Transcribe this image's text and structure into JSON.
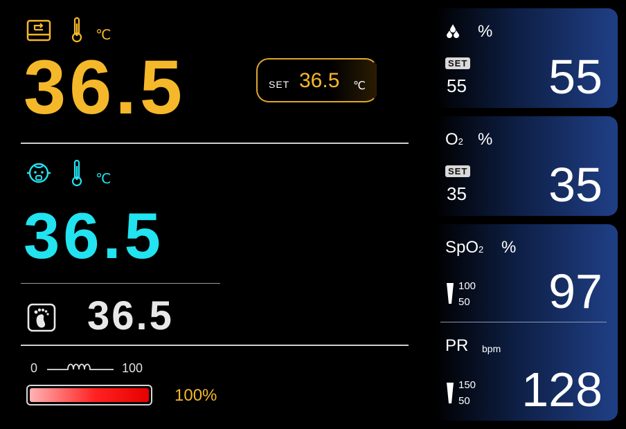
{
  "air_temp": {
    "unit": "℃",
    "value": "36.5",
    "set_label": "SET",
    "set_value": "36.5",
    "set_unit": "℃",
    "icon": "incubator-icon",
    "color": "#f5b82a"
  },
  "skin_temp": {
    "unit": "℃",
    "value": "36.5",
    "icon": "baby-face-icon",
    "color": "#22e3f0"
  },
  "foot_temp": {
    "value": "36.5",
    "icon": "foot-icon"
  },
  "heater": {
    "min": "0",
    "max": "100",
    "percent_label": "100%",
    "level": 1.0,
    "icon": "heater-coil-icon"
  },
  "humidity": {
    "icon": "humidity-drops-icon",
    "unit": "%",
    "set_label": "SET",
    "set_value": "55",
    "value": "55"
  },
  "oxygen": {
    "label": "O",
    "sub": "2",
    "unit": "%",
    "set_label": "SET",
    "set_value": "35",
    "value": "35"
  },
  "spo2": {
    "label": "SpO",
    "sub": "2",
    "unit": "%",
    "alarm_high": "100",
    "alarm_low": "50",
    "value": "97"
  },
  "pulse_rate": {
    "label": "PR",
    "unit": "bpm",
    "alarm_high": "150",
    "alarm_low": "50",
    "value": "128"
  }
}
